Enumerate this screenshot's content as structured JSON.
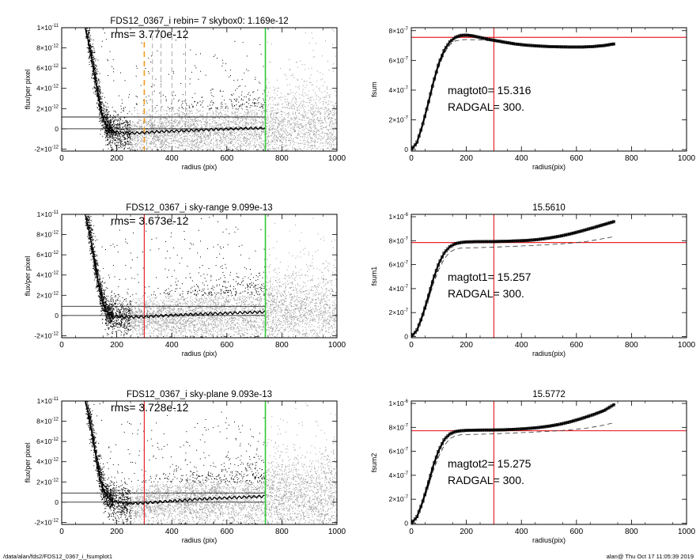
{
  "footer": {
    "path": "/data/alan/fds2/FDS12_0367_i_fsumplot1",
    "stamp": "alan@  Thu Oct 17 11:05:39 2019"
  },
  "colors": {
    "scatter_dark": "#000000",
    "scatter_light": "#9a9a9a",
    "red": "#e8262b",
    "green": "#2fc936",
    "orange": "#f39a1e",
    "axis": "#000000"
  },
  "chart_data": [
    {
      "id": "sky-rebin",
      "type": "scatter",
      "title": "FDS12_0367_i rebin= 7    skybox0:  1.169e-12",
      "annotation": "rms= 3.770e-12",
      "xlabel": "radius (pix)",
      "ylabel": "flux/per pixel",
      "xlim": [
        0,
        1000
      ],
      "ylim": [
        -2.2e-12,
        1e-11
      ],
      "xticks": [
        "0",
        "200",
        "400",
        "600",
        "800",
        "1000"
      ],
      "yticks": [
        {
          "v": -2e-12,
          "m": "-2×10",
          "e": "-12"
        },
        {
          "v": 0,
          "m": "0",
          "e": ""
        },
        {
          "v": 2e-12,
          "m": "2×10",
          "e": "-12"
        },
        {
          "v": 4e-12,
          "m": "4×10",
          "e": "-12"
        },
        {
          "v": 6e-12,
          "m": "6×10",
          "e": "-12"
        },
        {
          "v": 8e-12,
          "m": "8×10",
          "e": "-12"
        },
        {
          "v": 1e-11,
          "m": "1×10",
          "e": "-11"
        }
      ],
      "sky_level": 1.169e-12,
      "zero_line": 0,
      "vline_red": null,
      "vline_orange": 300,
      "vlines_dashed": [
        330,
        360,
        400,
        450
      ],
      "vline_green": 740,
      "profile_x": [
        85,
        100,
        110,
        120,
        130,
        140,
        150,
        160,
        170,
        180,
        200,
        220,
        240,
        260,
        280,
        300,
        340,
        380,
        420,
        460,
        500,
        560,
        620,
        680,
        740
      ],
      "profile_y": [
        1e-11,
        8.3e-12,
        6.8e-12,
        5.2e-12,
        3.6e-12,
        2.2e-12,
        1.1e-12,
        4e-13,
        0,
        -2e-13,
        -3.5e-13,
        -4.2e-13,
        -4.4e-13,
        -4.2e-13,
        -4e-13,
        -3.8e-13,
        -3e-13,
        -2.5e-13,
        -2.2e-13,
        -1.8e-13,
        -1.2e-13,
        -5e-14,
        0,
        5e-14,
        8e-14
      ]
    },
    {
      "id": "sky-range",
      "type": "scatter",
      "title": "FDS12_0367_i sky-range  9.099e-13",
      "annotation": "rms= 3.673e-12",
      "xlabel": "radius (pix)",
      "ylabel": "flux/per pixel",
      "xlim": [
        0,
        1000
      ],
      "ylim": [
        -2.2e-12,
        1e-11
      ],
      "xticks": [
        "0",
        "200",
        "400",
        "600",
        "800",
        "1000"
      ],
      "yticks": [
        {
          "v": -2e-12,
          "m": "-2×10",
          "e": "-12"
        },
        {
          "v": 0,
          "m": "0",
          "e": ""
        },
        {
          "v": 2e-12,
          "m": "2×10",
          "e": "-12"
        },
        {
          "v": 4e-12,
          "m": "4×10",
          "e": "-12"
        },
        {
          "v": 6e-12,
          "m": "6×10",
          "e": "-12"
        },
        {
          "v": 8e-12,
          "m": "8×10",
          "e": "-12"
        },
        {
          "v": 1e-11,
          "m": "1×10",
          "e": "-11"
        }
      ],
      "sky_level": 9.099e-13,
      "zero_line": 0,
      "vline_red": 300,
      "vline_orange": null,
      "vlines_dashed": [],
      "vline_green": 740,
      "profile_x": [
        85,
        100,
        110,
        120,
        130,
        140,
        150,
        160,
        170,
        180,
        200,
        220,
        240,
        260,
        280,
        300,
        340,
        380,
        420,
        460,
        500,
        560,
        620,
        680,
        740
      ],
      "profile_y": [
        1e-11,
        8.3e-12,
        6.8e-12,
        5.2e-12,
        3.6e-12,
        2.3e-12,
        1.3e-12,
        6e-13,
        2e-13,
        0,
        -1e-13,
        -1.5e-13,
        -1.8e-13,
        -1.6e-13,
        -1.5e-13,
        -1.3e-13,
        -5e-14,
        0,
        5e-14,
        1e-13,
        1.5e-13,
        2e-13,
        2.5e-13,
        3e-13,
        3.5e-13
      ]
    },
    {
      "id": "sky-plane",
      "type": "scatter",
      "title": "FDS12_0367_i sky-plane  9.093e-13",
      "annotation": "rms= 3.728e-12",
      "xlabel": "radius (pix)",
      "ylabel": "flux/per pixel",
      "xlim": [
        0,
        1000
      ],
      "ylim": [
        -2.2e-12,
        1e-11
      ],
      "xticks": [
        "0",
        "200",
        "400",
        "600",
        "800",
        "1000"
      ],
      "yticks": [
        {
          "v": -2e-12,
          "m": "-2×10",
          "e": "-12"
        },
        {
          "v": 0,
          "m": "0",
          "e": ""
        },
        {
          "v": 2e-12,
          "m": "2×10",
          "e": "-12"
        },
        {
          "v": 4e-12,
          "m": "4×10",
          "e": "-12"
        },
        {
          "v": 6e-12,
          "m": "6×10",
          "e": "-12"
        },
        {
          "v": 8e-12,
          "m": "8×10",
          "e": "-12"
        },
        {
          "v": 1e-11,
          "m": "1×10",
          "e": "-11"
        }
      ],
      "sky_level": 9.093e-13,
      "zero_line": 0,
      "vline_red": 300,
      "vline_orange": null,
      "vlines_dashed": [],
      "vline_green": 740,
      "profile_x": [
        85,
        100,
        110,
        120,
        130,
        140,
        150,
        160,
        170,
        180,
        200,
        220,
        240,
        260,
        280,
        300,
        340,
        380,
        420,
        460,
        500,
        560,
        620,
        680,
        740
      ],
      "profile_y": [
        1e-11,
        8.3e-12,
        6.8e-12,
        5.2e-12,
        3.6e-12,
        2.3e-12,
        1.4e-12,
        8e-13,
        4e-13,
        2e-13,
        0,
        -5e-14,
        -1e-13,
        -1e-13,
        -1e-13,
        -8e-14,
        0,
        8e-14,
        1.5e-13,
        2.2e-13,
        3e-13,
        3.8e-13,
        4.5e-13,
        5.2e-13,
        5.8e-13
      ]
    },
    {
      "id": "fsum0",
      "type": "line",
      "title": "",
      "xlabel": "radius(pix)",
      "ylabel": "fsum",
      "xlim": [
        0,
        1000
      ],
      "ylim": [
        -1e-08,
        8.2e-07
      ],
      "xticks": [
        "0",
        "200",
        "400",
        "600",
        "800",
        "1000"
      ],
      "yticks": [
        {
          "v": 0,
          "m": "0",
          "e": ""
        },
        {
          "v": 2e-07,
          "m": "2×10",
          "e": "-7"
        },
        {
          "v": 4e-07,
          "m": "4×10",
          "e": "-7"
        },
        {
          "v": 6e-07,
          "m": "6×10",
          "e": "-7"
        },
        {
          "v": 8e-07,
          "m": "8×10",
          "e": "-7"
        }
      ],
      "annotations": [
        "magtot0=  15.316",
        "RADGAL=    300."
      ],
      "hline_red": 7.55e-07,
      "vline_red": 300,
      "curve_x": [
        0,
        20,
        40,
        60,
        80,
        100,
        120,
        140,
        160,
        180,
        200,
        220,
        240,
        260,
        280,
        300,
        340,
        380,
        420,
        460,
        500,
        540,
        580,
        620,
        660,
        700,
        740
      ],
      "curve_y": [
        0,
        4.5e-08,
        1.6e-07,
        3e-07,
        4.5e-07,
        5.8e-07,
        6.7e-07,
        7.25e-07,
        7.55e-07,
        7.68e-07,
        7.7e-07,
        7.66e-07,
        7.58e-07,
        7.5e-07,
        7.42e-07,
        7.35e-07,
        7.22e-07,
        7.1e-07,
        7.02e-07,
        6.97e-07,
        6.93e-07,
        6.91e-07,
        6.9e-07,
        6.9e-07,
        6.93e-07,
        7e-07,
        7.12e-07
      ],
      "dashed_x": [
        0,
        20,
        40,
        60,
        80,
        100,
        120,
        140,
        160,
        180,
        200,
        240,
        280,
        320,
        360,
        400,
        440,
        480,
        520,
        560,
        600,
        640,
        680,
        740
      ],
      "dashed_y": [
        0,
        4e-08,
        1.5e-07,
        2.9e-07,
        4.4e-07,
        5.6e-07,
        6.5e-07,
        7.05e-07,
        7.3e-07,
        7.38e-07,
        7.4e-07,
        7.38e-07,
        7.33e-07,
        7.25e-07,
        7.12e-07,
        7.03e-07,
        6.97e-07,
        6.93e-07,
        6.91e-07,
        6.9e-07,
        6.9e-07,
        6.92e-07,
        6.96e-07,
        7.05e-07
      ]
    },
    {
      "id": "fsum1",
      "type": "line",
      "title": "15.5610",
      "xlabel": "radius(pix)",
      "ylabel": "fsum1",
      "xlim": [
        0,
        1000
      ],
      "ylim": [
        -1e-08,
        1.02e-06
      ],
      "xticks": [
        "0",
        "200",
        "400",
        "600",
        "800",
        "1000"
      ],
      "yticks": [
        {
          "v": 0,
          "m": "0",
          "e": ""
        },
        {
          "v": 2e-07,
          "m": "2×10",
          "e": "-7"
        },
        {
          "v": 4e-07,
          "m": "4×10",
          "e": "-7"
        },
        {
          "v": 6e-07,
          "m": "6×10",
          "e": "-7"
        },
        {
          "v": 8e-07,
          "m": "8×10",
          "e": "-7"
        },
        {
          "v": 1e-06,
          "m": "1×10",
          "e": "-6"
        }
      ],
      "annotations": [
        "magtot1=  15.257",
        "RADGAL=    300."
      ],
      "hline_red": 7.85e-07,
      "vline_red": 300,
      "curve_x": [
        0,
        20,
        40,
        60,
        80,
        100,
        120,
        140,
        160,
        180,
        200,
        240,
        280,
        300,
        340,
        380,
        420,
        460,
        500,
        540,
        580,
        620,
        660,
        700,
        740
      ],
      "curve_y": [
        0,
        5e-08,
        1.7e-07,
        3.2e-07,
        4.8e-07,
        6.1e-07,
        7e-07,
        7.5e-07,
        7.75e-07,
        7.85e-07,
        7.9e-07,
        7.92e-07,
        7.93e-07,
        7.93e-07,
        7.95e-07,
        7.98e-07,
        8.02e-07,
        8.1e-07,
        8.22e-07,
        8.38e-07,
        8.58e-07,
        8.82e-07,
        9.08e-07,
        9.35e-07,
        9.62e-07
      ],
      "dashed_x": [
        0,
        20,
        40,
        60,
        80,
        100,
        120,
        140,
        160,
        180,
        200,
        240,
        280,
        320,
        360,
        400,
        440,
        480,
        520,
        560,
        600,
        640,
        680,
        740
      ],
      "dashed_y": [
        0,
        4e-08,
        1.5e-07,
        2.9e-07,
        4.4e-07,
        5.6e-07,
        6.5e-07,
        7.05e-07,
        7.3e-07,
        7.38e-07,
        7.4e-07,
        7.42e-07,
        7.45e-07,
        7.48e-07,
        7.52e-07,
        7.56e-07,
        7.6e-07,
        7.65e-07,
        7.7e-07,
        7.76e-07,
        7.84e-07,
        7.95e-07,
        8.1e-07,
        8.35e-07
      ]
    },
    {
      "id": "fsum2",
      "type": "line",
      "title": "15.5772",
      "xlabel": "radius(pix)",
      "ylabel": "fsum2",
      "xlim": [
        0,
        1000
      ],
      "ylim": [
        -1e-08,
        1.02e-06
      ],
      "xticks": [
        "0",
        "200",
        "400",
        "600",
        "800",
        "1000"
      ],
      "yticks": [
        {
          "v": 0,
          "m": "0",
          "e": ""
        },
        {
          "v": 2e-07,
          "m": "2×10",
          "e": "-7"
        },
        {
          "v": 4e-07,
          "m": "4×10",
          "e": "-7"
        },
        {
          "v": 6e-07,
          "m": "6×10",
          "e": "-7"
        },
        {
          "v": 8e-07,
          "m": "8×10",
          "e": "-7"
        },
        {
          "v": 1e-06,
          "m": "1×10",
          "e": "-6"
        }
      ],
      "annotations": [
        "magtot2=  15.275",
        "RADGAL=    300."
      ],
      "hline_red": 7.72e-07,
      "vline_red": 300,
      "curve_x": [
        0,
        20,
        40,
        60,
        80,
        100,
        120,
        140,
        160,
        180,
        200,
        240,
        280,
        300,
        340,
        380,
        420,
        460,
        500,
        540,
        580,
        620,
        660,
        700,
        740
      ],
      "curve_y": [
        0,
        5e-08,
        1.7e-07,
        3.2e-07,
        4.8e-07,
        6.1e-07,
        7e-07,
        7.45e-07,
        7.65e-07,
        7.72e-07,
        7.75e-07,
        7.77e-07,
        7.78e-07,
        7.78e-07,
        7.8e-07,
        7.84e-07,
        7.9e-07,
        7.98e-07,
        8.1e-07,
        8.26e-07,
        8.48e-07,
        8.75e-07,
        9.05e-07,
        9.4e-07,
        9.95e-07
      ],
      "dashed_x": [
        0,
        20,
        40,
        60,
        80,
        100,
        120,
        140,
        160,
        180,
        200,
        240,
        280,
        320,
        360,
        400,
        440,
        480,
        520,
        560,
        600,
        640,
        680,
        740
      ],
      "dashed_y": [
        0,
        4e-08,
        1.5e-07,
        2.9e-07,
        4.4e-07,
        5.6e-07,
        6.5e-07,
        7.05e-07,
        7.3e-07,
        7.38e-07,
        7.4e-07,
        7.42e-07,
        7.45e-07,
        7.48e-07,
        7.52e-07,
        7.56e-07,
        7.6e-07,
        7.65e-07,
        7.7e-07,
        7.76e-07,
        7.84e-07,
        7.95e-07,
        8.1e-07,
        8.4e-07
      ]
    }
  ]
}
